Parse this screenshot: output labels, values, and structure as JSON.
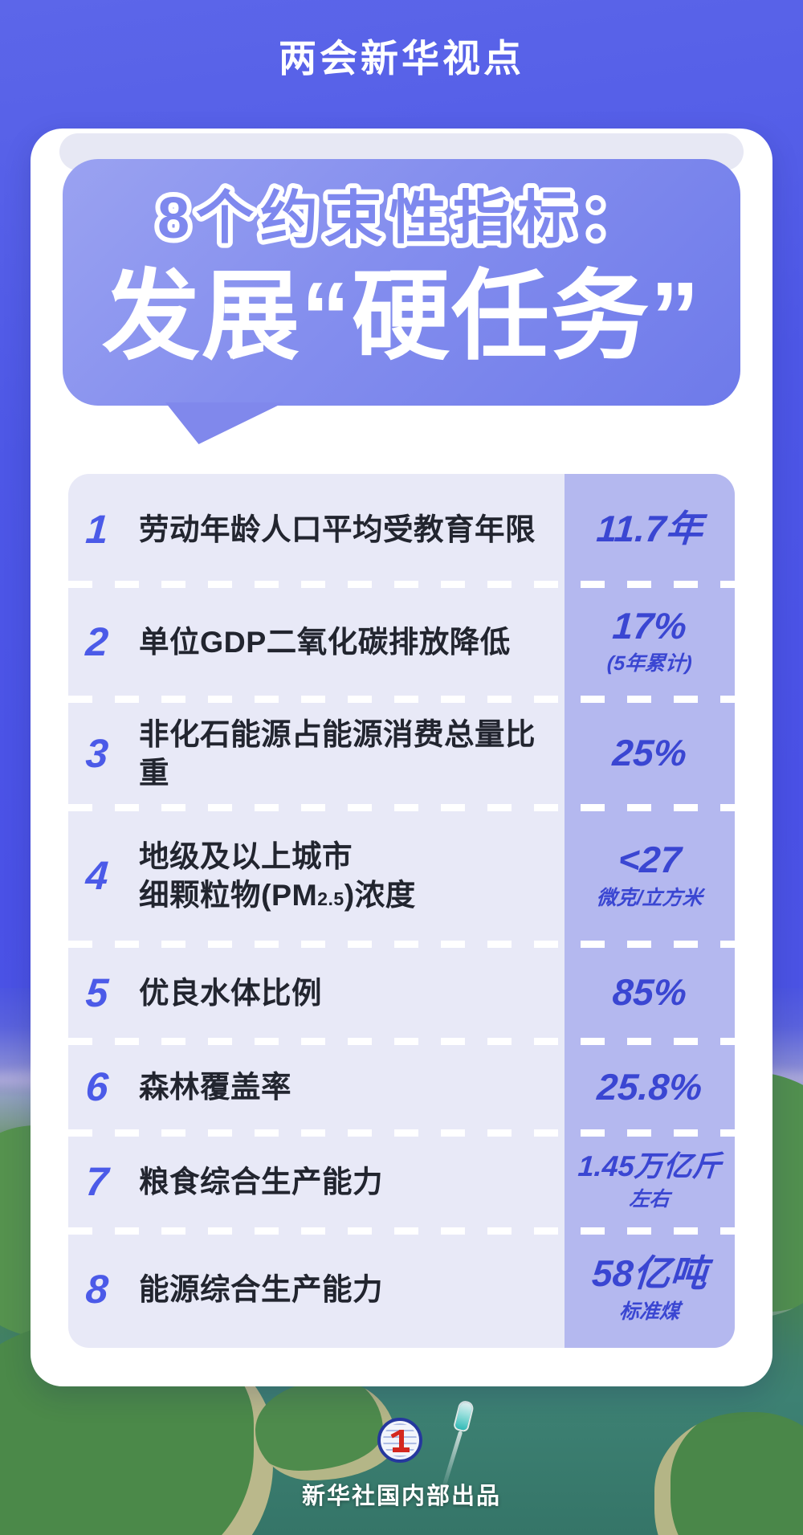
{
  "banner": {
    "title": "两会新华视点"
  },
  "header": {
    "line1": "8个约束性指标：",
    "line2": "发展“硬任务”"
  },
  "table": {
    "rows": [
      {
        "num": "1",
        "label": [
          [
            {
              "t": "劳动年龄人口平均受教育年限"
            }
          ]
        ],
        "value": "11.7年",
        "sub": ""
      },
      {
        "num": "2",
        "label": [
          [
            {
              "t": "单位GDP二氧化碳排放降低"
            }
          ]
        ],
        "value": "17%",
        "sub": "(5年累计)"
      },
      {
        "num": "3",
        "label": [
          [
            {
              "t": "非化石能源占能源消费总量比重"
            }
          ]
        ],
        "value": "25%",
        "sub": ""
      },
      {
        "num": "4",
        "label": [
          [
            {
              "t": "地级及以上城市"
            }
          ],
          [
            {
              "t": "细颗粒物(PM"
            },
            {
              "t": "2.5",
              "s": 1
            },
            {
              "t": ")浓度"
            }
          ]
        ],
        "value": "<27",
        "sub": "微克/立方米"
      },
      {
        "num": "5",
        "label": [
          [
            {
              "t": "优良水体比例"
            }
          ]
        ],
        "value": "85%",
        "sub": ""
      },
      {
        "num": "6",
        "label": [
          [
            {
              "t": "森林覆盖率"
            }
          ]
        ],
        "value": "25.8%",
        "sub": ""
      },
      {
        "num": "7",
        "label": [
          [
            {
              "t": "粮食综合生产能力"
            }
          ]
        ],
        "value": "1.45万亿斤",
        "sub": "左右"
      },
      {
        "num": "8",
        "label": [
          [
            {
              "t": "能源综合生产能力"
            }
          ]
        ],
        "value": "58亿吨",
        "sub": "标准煤"
      }
    ]
  },
  "footer": {
    "credit": "新华社国内部出品",
    "logo": "xinhua-news-agency-emblem"
  },
  "colors": {
    "background_purple": "#4c55e4",
    "bubble_from": "#9aa2f1",
    "bubble_to": "#6e7aea",
    "header_line1_fill": "#7e88ee",
    "table_bg": "#e8e9f7",
    "value_column_bg": "#b4b8ef",
    "value_blue": "#3a46d2",
    "number_blue": "#4b5ae8",
    "label_dark": "#22252f",
    "water_teal": "#3d8173"
  }
}
